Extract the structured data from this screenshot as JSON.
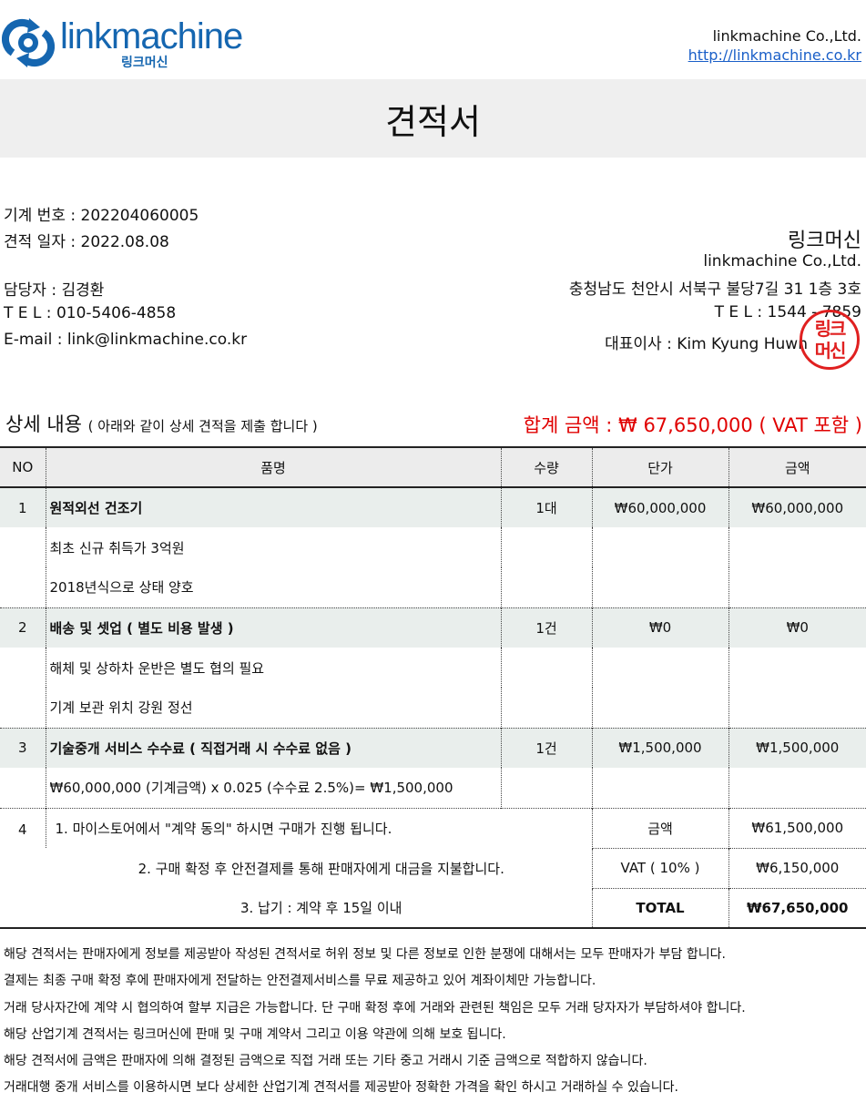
{
  "header": {
    "logo_text": "linkmachine",
    "logo_kr": "링크머신",
    "company": "linkmachine Co.,Ltd.",
    "url": "http://linkmachine.co.kr"
  },
  "title": "견적서",
  "quote": {
    "machine_no": "기계 번호 : 202204060005",
    "date": "견적 일자 : 2022.08.08",
    "manager": "담당자 : 김경환",
    "tel": "T E L  : 010-5406-4858",
    "email": "E-mail  : link@linkmachine.co.kr"
  },
  "supplier": {
    "name": "링크머신",
    "company": "linkmachine Co.,Ltd.",
    "address": "충청남도 천안시 서북구 불당7길 31 1층 3호",
    "tel": "T E L : 1544 - 7859",
    "ceo": "대표이사 : Kim Kyung Huwn",
    "stamp": "링크머신"
  },
  "section": {
    "title": "상세 내용",
    "subtitle": "( 아래와 같이 상세 견적을 제출 합니다 )",
    "total": "합계 금액 : ₩ 67,650,000 ( VAT 포함 )"
  },
  "table": {
    "headers": [
      "NO",
      "품명",
      "수량",
      "단가",
      "금액"
    ],
    "items": [
      {
        "no": "1",
        "name": "원적외선 건조기",
        "qty": "1대",
        "unit": "₩60,000,000",
        "amount": "₩60,000,000",
        "details": [
          "최초 신규 취득가 3억원",
          "2018년식으로 상태 양호"
        ]
      },
      {
        "no": "2",
        "name": "배송 및 셋업 ( 별도 비용 발생 )",
        "qty": "1건",
        "unit": "₩0",
        "amount": "₩0",
        "details": [
          "해체 및 상하차 운반은 별도 협의 필요",
          "기계 보관 위치 강원 정선"
        ]
      },
      {
        "no": "3",
        "name": "기술중개 서비스 수수료 ( 직접거래 시 수수료 없음 )",
        "qty": "1건",
        "unit": "₩1,500,000",
        "amount": "₩1,500,000",
        "details": [
          "₩60,000,000 (기계금액) x 0.025 (수수료 2.5%)= ₩1,500,000"
        ]
      }
    ],
    "summary": {
      "no": "4",
      "terms": [
        "1. 마이스토어에서 \"계약 동의\" 하시면 구매가 진행 됩니다.",
        "2. 구매 확정 후 안전결제를 통해 판매자에게 대금을 지불합니다.",
        "3. 납기 : 계약 후 15일 이내"
      ],
      "labels": [
        "금액",
        "VAT ( 10% )",
        "TOTAL"
      ],
      "values": [
        "₩61,500,000",
        "₩6,150,000",
        "₩67,650,000"
      ]
    }
  },
  "notes": [
    "해당 견적서는 판매자에게 정보를 제공받아 작성된 견적서로 허위 정보 및 다른 정보로 인한 분쟁에 대해서는 모두 판매자가 부담 합니다.",
    "결제는 최종 구매 확정 후에 판매자에게 전달하는 안전결제서비스를 무료 제공하고 있어 계좌이체만 가능합니다.",
    "거래 당사자간에 계약 시 협의하여 할부 지급은 가능합니다. 단 구매 확정 후에 거래와 관련된 책임은 모두 거래 당자자가 부담하셔야 합니다.",
    "해당 산업기계 견적서는 링크머신에 판매 및 구매 계약서 그리고 이용 약관에 의해 보호 됩니다.",
    "해당 견적서에 금액은 판매자에 의해 결정된 금액으로 직접 거래 또는 기타 중고 거래시 기준 금액으로 적합하지 않습니다.",
    "거래대행 중개 서비스를 이용하시면 보다 상세한 산업기계 견적서를 제공받아 정확한 가격을 확인 하시고 거래하실 수 있습니다."
  ],
  "colors": {
    "brand": "#1566b0",
    "accent_red": "#e00000"
  }
}
